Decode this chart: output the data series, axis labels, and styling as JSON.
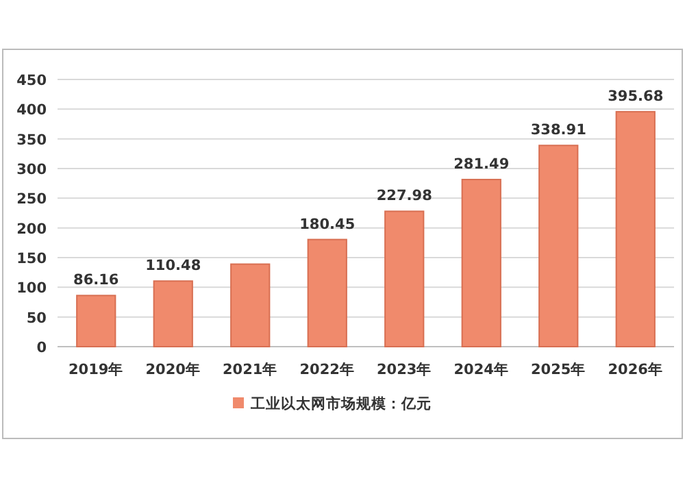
{
  "chart_data": {
    "type": "bar",
    "categories": [
      "2019年",
      "2020年",
      "2021年",
      "2022年",
      "2023年",
      "2024年",
      "2025年",
      "2026年"
    ],
    "series": [
      {
        "name": "工业以太网市场规模：亿元",
        "color": "#f08a6c",
        "values": [
          86.16,
          110.48,
          139,
          180.45,
          227.98,
          281.49,
          338.91,
          395.68
        ],
        "value_labels": [
          "86.16",
          "110.48",
          null,
          "180.45",
          "227.98",
          "281.49",
          "338.91",
          "395.68"
        ]
      }
    ],
    "ylim": [
      0,
      450
    ],
    "yticks": [
      0,
      50,
      100,
      150,
      200,
      250,
      300,
      350,
      400,
      450
    ],
    "grid": "y",
    "legend": "bottom"
  }
}
